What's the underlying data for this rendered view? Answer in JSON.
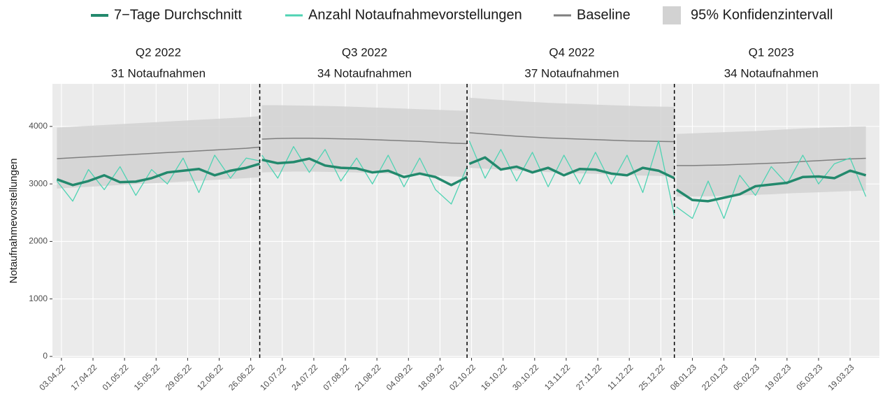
{
  "chart_data": {
    "type": "line",
    "ylabel": "Notaufnahmevorstellungen",
    "series": [
      {
        "name": "7−Tage Durchschnitt",
        "color": "#23896d"
      },
      {
        "name": "Anzahl Notaufnahmevorstellungen",
        "color": "#4fd3b3"
      },
      {
        "name": "Baseline",
        "color": "#7f7f7f"
      },
      {
        "name": "95% Konfidenzintervall",
        "color": "#d2d2d2"
      }
    ],
    "ylim": [
      -25,
      4740
    ],
    "yticks": [
      0,
      1000,
      2000,
      3000,
      4000
    ],
    "grid": true,
    "xlim": [
      "2022-03-30",
      "2023-04-01"
    ],
    "xticks": [
      {
        "value": "2022-04-03",
        "label": "03.04.22"
      },
      {
        "value": "2022-04-17",
        "label": "17.04.22"
      },
      {
        "value": "2022-05-01",
        "label": "01.05.22"
      },
      {
        "value": "2022-05-15",
        "label": "15.05.22"
      },
      {
        "value": "2022-05-29",
        "label": "29.05.22"
      },
      {
        "value": "2022-06-12",
        "label": "12.06.22"
      },
      {
        "value": "2022-06-26",
        "label": "26.06.22"
      },
      {
        "value": "2022-07-10",
        "label": "10.07.22"
      },
      {
        "value": "2022-07-24",
        "label": "24.07.22"
      },
      {
        "value": "2022-08-07",
        "label": "07.08.22"
      },
      {
        "value": "2022-08-21",
        "label": "21.08.22"
      },
      {
        "value": "2022-09-04",
        "label": "04.09.22"
      },
      {
        "value": "2022-09-18",
        "label": "18.09.22"
      },
      {
        "value": "2022-10-02",
        "label": "02.10.22"
      },
      {
        "value": "2022-10-16",
        "label": "16.10.22"
      },
      {
        "value": "2022-10-30",
        "label": "30.10.22"
      },
      {
        "value": "2022-11-13",
        "label": "13.11.22"
      },
      {
        "value": "2022-11-27",
        "label": "27.11.22"
      },
      {
        "value": "2022-12-11",
        "label": "11.12.22"
      },
      {
        "value": "2022-12-25",
        "label": "25.12.22"
      },
      {
        "value": "2023-01-08",
        "label": "08.01.23"
      },
      {
        "value": "2023-01-22",
        "label": "22.01.23"
      },
      {
        "value": "2023-02-05",
        "label": "05.02.23"
      },
      {
        "value": "2023-02-19",
        "label": "19.02.23"
      },
      {
        "value": "2023-03-05",
        "label": "05.03.23"
      },
      {
        "value": "2023-03-19",
        "label": "19.03.23"
      }
    ],
    "quarter_breaks": [
      "2022-06-30",
      "2022-09-30",
      "2022-12-31"
    ],
    "panels": [
      {
        "title": "Q2 2022",
        "subtitle": "31 Notaufnahmen",
        "x": [
          "2022-04-01",
          "2022-04-08",
          "2022-04-15",
          "2022-04-22",
          "2022-04-29",
          "2022-05-06",
          "2022-05-13",
          "2022-05-20",
          "2022-05-27",
          "2022-06-03",
          "2022-06-10",
          "2022-06-17",
          "2022-06-24",
          "2022-06-30"
        ],
        "series": [
          {
            "values": [
              3080,
              2980,
              3050,
              3150,
              3030,
              3040,
              3100,
              3200,
              3230,
              3260,
              3150,
              3230,
              3280,
              3350
            ]
          },
          {
            "values": [
              3050,
              2700,
              3250,
              2900,
              3300,
              2800,
              3250,
              3000,
              3450,
              2850,
              3500,
              3100,
              3450,
              3400
            ]
          },
          {
            "values": [
              3440,
              3455,
              3470,
              3485,
              3500,
              3515,
              3530,
              3545,
              3560,
              3575,
              3590,
              3605,
              3620,
              3640
            ]
          }
        ],
        "ci_upper": [
          3980,
          3995,
          4010,
          4025,
          4040,
          4055,
          4070,
          4085,
          4100,
          4115,
          4130,
          4145,
          4160,
          4180
        ],
        "ci_lower": [
          2920,
          2935,
          2950,
          2965,
          2980,
          2995,
          3010,
          3025,
          3040,
          3055,
          3070,
          3085,
          3100,
          3115
        ]
      },
      {
        "title": "Q3 2022",
        "subtitle": "34 Notaufnahmen",
        "x": [
          "2022-07-01",
          "2022-07-08",
          "2022-07-15",
          "2022-07-22",
          "2022-07-29",
          "2022-08-05",
          "2022-08-12",
          "2022-08-19",
          "2022-08-26",
          "2022-09-02",
          "2022-09-09",
          "2022-09-16",
          "2022-09-23",
          "2022-09-30"
        ],
        "series": [
          {
            "values": [
              3420,
              3360,
              3380,
              3440,
              3320,
              3280,
              3270,
              3200,
              3230,
              3120,
              3180,
              3120,
              2980,
              3120
            ]
          },
          {
            "values": [
              3500,
              3100,
              3650,
              3200,
              3600,
              3050,
              3450,
              3000,
              3500,
              2950,
              3450,
              2900,
              2650,
              3300
            ]
          },
          {
            "values": [
              3780,
              3790,
              3795,
              3795,
              3790,
              3785,
              3780,
              3770,
              3760,
              3750,
              3740,
              3725,
              3710,
              3700
            ]
          }
        ],
        "ci_upper": [
          4370,
          4370,
          4365,
          4360,
          4355,
          4350,
          4340,
          4330,
          4320,
          4310,
          4300,
          4290,
          4280,
          4270
        ],
        "ci_lower": [
          3200,
          3210,
          3215,
          3215,
          3210,
          3205,
          3200,
          3190,
          3180,
          3170,
          3160,
          3145,
          3130,
          3120
        ]
      },
      {
        "title": "Q4 2022",
        "subtitle": "37 Notaufnahmen",
        "x": [
          "2022-10-01",
          "2022-10-08",
          "2022-10-15",
          "2022-10-22",
          "2022-10-29",
          "2022-11-05",
          "2022-11-12",
          "2022-11-19",
          "2022-11-26",
          "2022-12-03",
          "2022-12-10",
          "2022-12-17",
          "2022-12-24",
          "2022-12-31"
        ],
        "series": [
          {
            "values": [
              3350,
              3460,
              3250,
              3300,
              3200,
              3280,
              3150,
              3260,
              3250,
              3180,
              3150,
              3280,
              3230,
              3100
            ]
          },
          {
            "values": [
              3750,
              3100,
              3600,
              3050,
              3550,
              2950,
              3500,
              3000,
              3550,
              3000,
              3500,
              2850,
              3750,
              2450
            ]
          },
          {
            "values": [
              3890,
              3870,
              3850,
              3830,
              3815,
              3800,
              3790,
              3780,
              3770,
              3760,
              3750,
              3745,
              3740,
              3735
            ]
          }
        ],
        "ci_upper": [
          4500,
          4480,
          4460,
          4440,
          4425,
          4410,
          4400,
          4390,
          4380,
          4370,
          4360,
          4350,
          4345,
          4340
        ],
        "ci_lower": [
          3280,
          3265,
          3250,
          3235,
          3220,
          3205,
          3195,
          3185,
          3175,
          3165,
          3155,
          3145,
          3140,
          3130
        ]
      },
      {
        "title": "Q1 2023",
        "subtitle": "34 Notaufnahmen",
        "x": [
          "2023-01-01",
          "2023-01-08",
          "2023-01-15",
          "2023-01-22",
          "2023-01-29",
          "2023-02-05",
          "2023-02-12",
          "2023-02-19",
          "2023-02-26",
          "2023-03-05",
          "2023-03-12",
          "2023-03-19",
          "2023-03-26"
        ],
        "series": [
          {
            "values": [
              2900,
              2720,
              2700,
              2760,
              2820,
              2960,
              2990,
              3020,
              3120,
              3130,
              3100,
              3230,
              3150
            ]
          },
          {
            "values": [
              2600,
              2400,
              3050,
              2400,
              3150,
              2800,
              3300,
              3000,
              3500,
              3000,
              3350,
              3450,
              2780
            ]
          },
          {
            "values": [
              3320,
              3320,
              3325,
              3330,
              3340,
              3350,
              3360,
              3370,
              3390,
              3405,
              3420,
              3435,
              3445
            ]
          }
        ],
        "ci_upper": [
          3870,
          3880,
          3890,
          3900,
          3910,
          3920,
          3935,
          3950,
          3965,
          3975,
          3985,
          3995,
          4000
        ],
        "ci_lower": [
          2780,
          2780,
          2785,
          2790,
          2800,
          2810,
          2820,
          2835,
          2845,
          2855,
          2865,
          2875,
          2885
        ]
      }
    ]
  }
}
